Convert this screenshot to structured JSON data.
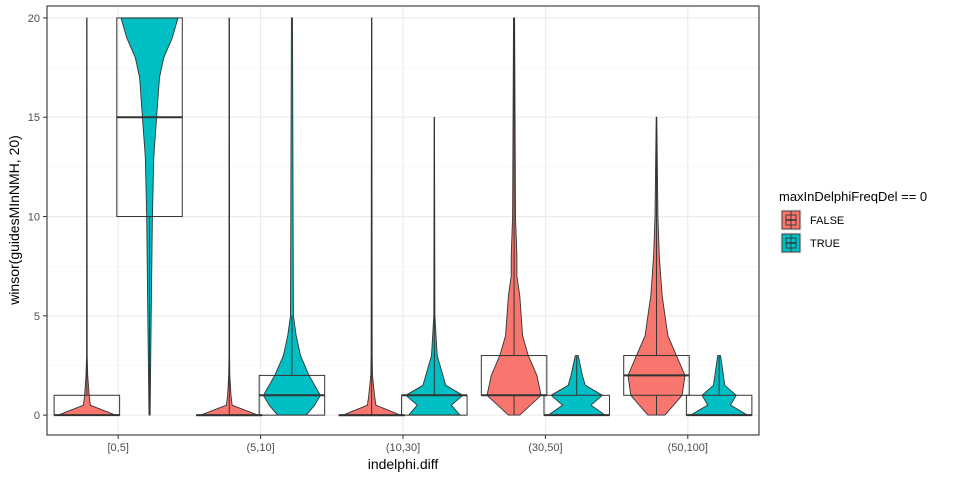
{
  "chart_data": {
    "type": "violin+box",
    "xlabel": "indelphi.diff",
    "ylabel": "winsor(guidesMInNMH, 20)",
    "categories": [
      "[0,5]",
      "(5,10]",
      "(10,30]",
      "(30,50]",
      "(50,100]"
    ],
    "ylim": [
      -1,
      20.6
    ],
    "yticks": [
      0,
      5,
      10,
      15,
      20
    ],
    "grid": true,
    "legend": {
      "title": "maxInDelphiFreqDel == 0",
      "position": "right",
      "entries": [
        {
          "label": "FALSE",
          "color": "#F8766D"
        },
        {
          "label": "TRUE",
          "color": "#00BFC4"
        }
      ]
    },
    "series": [
      {
        "name": "FALSE",
        "color": "#F8766D",
        "boxes": [
          {
            "q1": 0,
            "median": 0,
            "q3": 1,
            "whisker_low": 0,
            "whisker_high": 20
          },
          {
            "q1": 0,
            "median": 0,
            "q3": 0,
            "whisker_low": 0,
            "whisker_high": 20
          },
          {
            "q1": 0,
            "median": 0,
            "q3": 0,
            "whisker_low": 0,
            "whisker_high": 20
          },
          {
            "q1": 1,
            "median": 1,
            "q3": 3,
            "whisker_low": 0,
            "whisker_high": 20
          },
          {
            "q1": 1,
            "median": 2,
            "q3": 3,
            "whisker_low": 0,
            "whisker_high": 15
          }
        ],
        "violins": [
          [
            [
              0,
              1.0
            ],
            [
              0.5,
              0.12
            ],
            [
              1,
              0.08
            ],
            [
              2,
              0.03
            ],
            [
              3,
              0.01
            ],
            [
              20,
              0.005
            ]
          ],
          [
            [
              0,
              1.0
            ],
            [
              0.5,
              0.1
            ],
            [
              1,
              0.06
            ],
            [
              2,
              0.02
            ],
            [
              3,
              0.01
            ],
            [
              20,
              0.005
            ]
          ],
          [
            [
              0,
              1.0
            ],
            [
              0.5,
              0.15
            ],
            [
              1,
              0.1
            ],
            [
              2,
              0.03
            ],
            [
              3,
              0.02
            ],
            [
              20,
              0.005
            ]
          ],
          [
            [
              0,
              0.2
            ],
            [
              1,
              0.95
            ],
            [
              2,
              0.8
            ],
            [
              3,
              0.5
            ],
            [
              4,
              0.3
            ],
            [
              5,
              0.25
            ],
            [
              6,
              0.2
            ],
            [
              7,
              0.1
            ],
            [
              8,
              0.1
            ],
            [
              10,
              0.05
            ],
            [
              20,
              0.02
            ]
          ],
          [
            [
              0,
              0.3
            ],
            [
              1,
              0.9
            ],
            [
              2,
              1.0
            ],
            [
              3,
              0.7
            ],
            [
              4,
              0.4
            ],
            [
              5,
              0.3
            ],
            [
              6,
              0.2
            ],
            [
              7,
              0.15
            ],
            [
              8,
              0.1
            ],
            [
              10,
              0.05
            ],
            [
              15,
              0.01
            ]
          ]
        ]
      },
      {
        "name": "TRUE",
        "color": "#00BFC4",
        "boxes": [
          {
            "q1": 10,
            "median": 15,
            "q3": 20,
            "whisker_low": 0,
            "whisker_high": 20
          },
          {
            "q1": 0,
            "median": 1,
            "q3": 2,
            "whisker_low": 0,
            "whisker_high": 5
          },
          {
            "q1": 0,
            "median": 1,
            "q3": 1,
            "whisker_low": 0,
            "whisker_high": 15
          },
          {
            "q1": 0,
            "median": 0,
            "q3": 1,
            "whisker_low": 0,
            "whisker_high": 3
          },
          {
            "q1": 0,
            "median": 0,
            "q3": 1,
            "whisker_low": 0,
            "whisker_high": 3
          }
        ],
        "violins": [
          [
            [
              0,
              0.02
            ],
            [
              5,
              0.06
            ],
            [
              10,
              0.1
            ],
            [
              13,
              0.15
            ],
            [
              15,
              0.25
            ],
            [
              17,
              0.35
            ],
            [
              18,
              0.5
            ],
            [
              19,
              0.8
            ],
            [
              20,
              1.0
            ]
          ],
          [
            [
              0,
              0.5
            ],
            [
              0.5,
              0.8
            ],
            [
              1,
              1.0
            ],
            [
              2,
              0.6
            ],
            [
              3,
              0.3
            ],
            [
              4,
              0.15
            ],
            [
              5,
              0.05
            ],
            [
              20,
              0.02
            ]
          ],
          [
            [
              0,
              0.9
            ],
            [
              0.5,
              0.6
            ],
            [
              1,
              1.0
            ],
            [
              1.5,
              0.4
            ],
            [
              2,
              0.3
            ],
            [
              3,
              0.1
            ],
            [
              5,
              0.02
            ],
            [
              15,
              0.005
            ]
          ],
          [
            [
              0,
              1.0
            ],
            [
              0.5,
              0.5
            ],
            [
              1,
              0.9
            ],
            [
              1.5,
              0.3
            ],
            [
              2,
              0.2
            ],
            [
              3,
              0.05
            ]
          ],
          [
            [
              0,
              1.0
            ],
            [
              0.5,
              0.4
            ],
            [
              1,
              0.6
            ],
            [
              1.5,
              0.2
            ],
            [
              2,
              0.15
            ],
            [
              3,
              0.05
            ]
          ]
        ]
      }
    ]
  }
}
